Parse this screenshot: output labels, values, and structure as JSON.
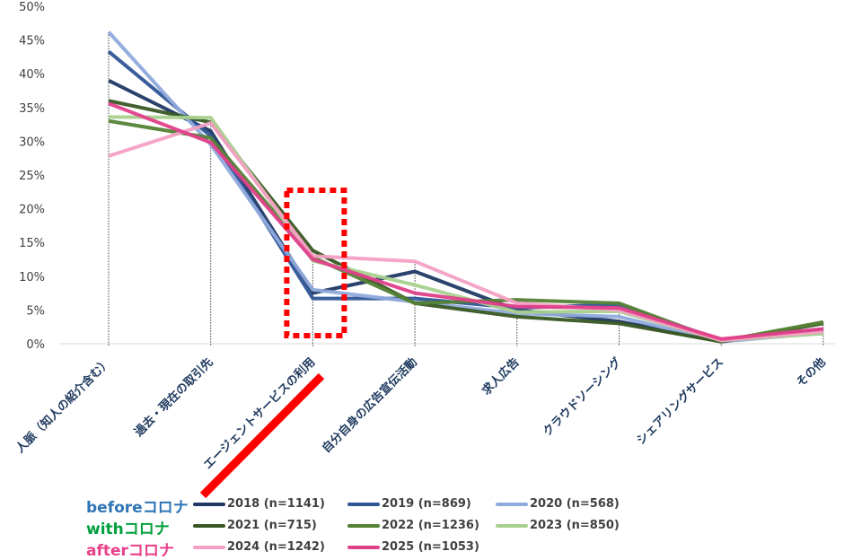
{
  "chart_data": {
    "type": "line",
    "categories": [
      "人脈（知人の紹介含む）",
      "過去・現在の取引先",
      "エージェントサービスの利用",
      "自分自身の広告宣伝活動",
      "求人広告",
      "クラウドソーシング",
      "シェアリングサービス",
      "その他"
    ],
    "yticks": [
      "0%",
      "5%",
      "10%",
      "15%",
      "20%",
      "25%",
      "30%",
      "35%",
      "40%",
      "45%",
      "50%"
    ],
    "ylim": [
      0,
      50
    ],
    "series": [
      {
        "name": "2018 (n=1141)",
        "color": "#1f3864",
        "values": [
          39.0,
          31.5,
          7.5,
          10.7,
          5.0,
          3.3,
          0.4,
          2.0
        ]
      },
      {
        "name": "2019 (n=869)",
        "color": "#2f5597",
        "values": [
          43.3,
          30.8,
          6.7,
          6.7,
          5.3,
          5.8,
          0.5,
          2.1
        ]
      },
      {
        "name": "2020 (n=568)",
        "color": "#8faadc",
        "values": [
          46.2,
          29.5,
          8.0,
          6.2,
          4.5,
          4.0,
          0.3,
          1.6
        ]
      },
      {
        "name": "2021 (n=715)",
        "color": "#385723",
        "values": [
          36.0,
          32.8,
          13.8,
          6.0,
          4.0,
          3.0,
          0.3,
          3.0
        ]
      },
      {
        "name": "2022 (n=1236)",
        "color": "#548235",
        "values": [
          33.0,
          30.5,
          12.8,
          6.0,
          6.5,
          6.0,
          0.4,
          3.2
        ]
      },
      {
        "name": "2023 (n=850)",
        "color": "#a9d18e",
        "values": [
          33.6,
          33.5,
          12.3,
          8.7,
          4.7,
          4.8,
          0.5,
          1.5
        ]
      },
      {
        "name": "2024 (n=1242)",
        "color": "#f4a0c4",
        "values": [
          27.8,
          32.7,
          13.0,
          12.2,
          6.0,
          5.0,
          0.5,
          1.8
        ]
      },
      {
        "name": "2025 (n=1053)",
        "color": "#e0408a",
        "values": [
          35.6,
          29.8,
          12.5,
          7.5,
          5.5,
          5.3,
          0.7,
          2.2
        ]
      }
    ],
    "legend_groups": [
      {
        "label": "beforeコロナ",
        "color": "#2e75b6",
        "series": [
          0,
          1,
          2
        ]
      },
      {
        "label": "withコロナ",
        "color": "#00a03c",
        "series": [
          3,
          4,
          5
        ]
      },
      {
        "label": "afterコロナ",
        "color": "#e8408a",
        "series": [
          6,
          7
        ]
      }
    ],
    "highlight_category": "エージェントサービスの利用",
    "highlight_color": "#ff0000",
    "grid": false
  }
}
